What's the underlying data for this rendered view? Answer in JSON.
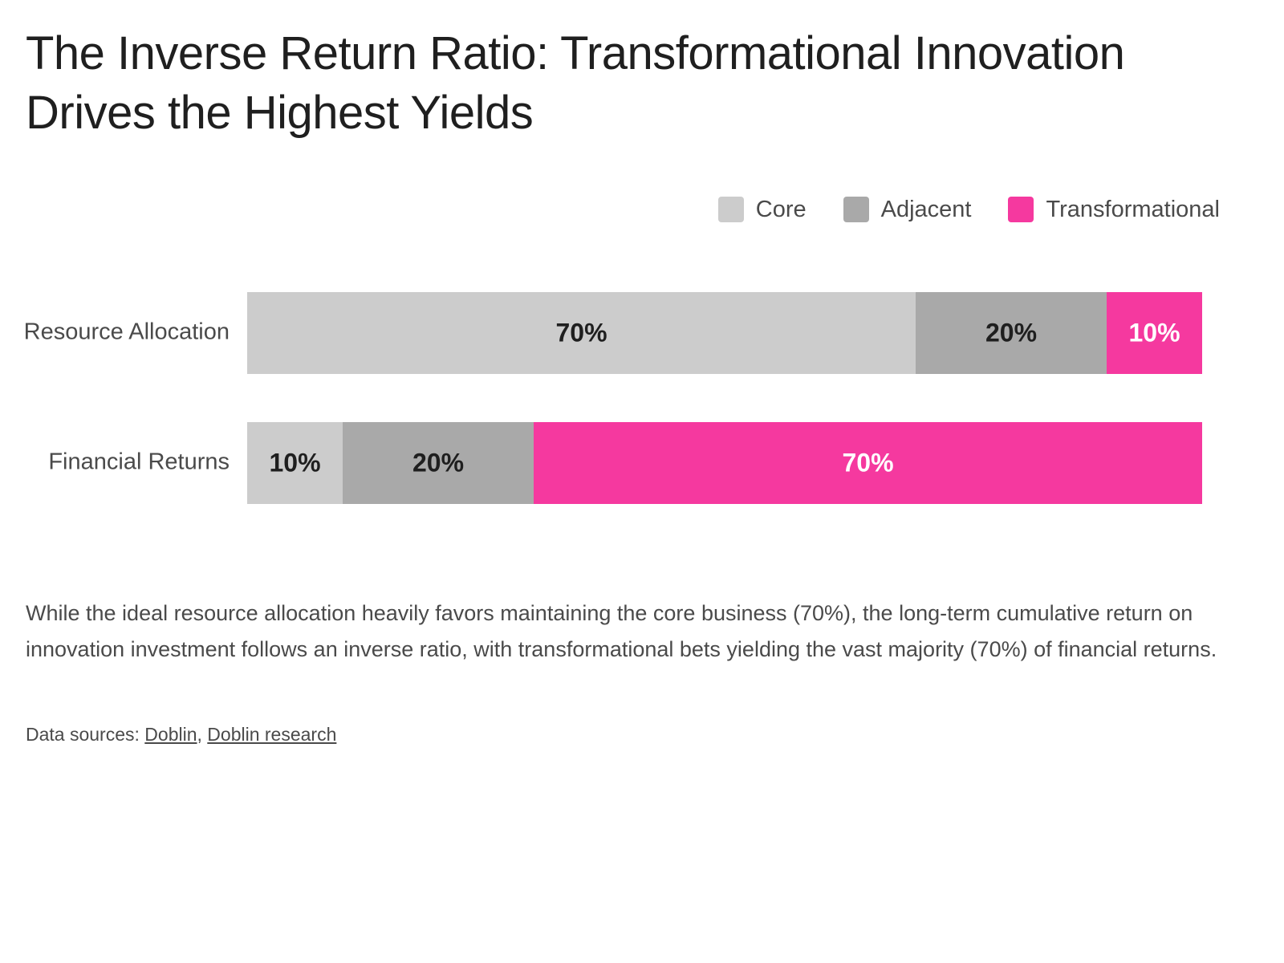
{
  "title": "The Inverse Return Ratio: Transformational Innovation Drives the Highest Yields",
  "description": "While the ideal resource allocation heavily favors maintaining the core business (70%), the long-term cumulative return on innovation investment follows an inverse ratio, with transformational bets yielding the vast majority (70%) of financial returns.",
  "sources": {
    "prefix": "Data sources:",
    "separator": ",",
    "links": [
      "Doblin",
      "Doblin research"
    ]
  },
  "chart_data": {
    "type": "bar",
    "orientation": "horizontal",
    "stacked": true,
    "unit": "%",
    "xlim": [
      0,
      100
    ],
    "legend_position": "top-right",
    "grid": false,
    "categories": [
      "Resource Allocation",
      "Financial Returns"
    ],
    "series": [
      {
        "name": "Core",
        "color": "#cccccc",
        "label_color": "#1f1f1f",
        "values": [
          70,
          10
        ]
      },
      {
        "name": "Adjacent",
        "color": "#a9a9a9",
        "label_color": "#1f1f1f",
        "values": [
          20,
          20
        ]
      },
      {
        "name": "Transformational",
        "color": "#f5399f",
        "label_color": "#ffffff",
        "values": [
          10,
          70
        ]
      }
    ]
  }
}
